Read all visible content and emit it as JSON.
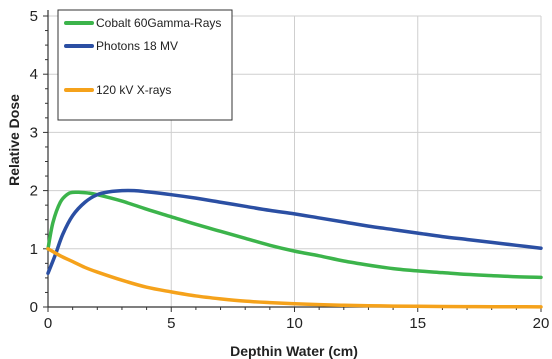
{
  "chart_data": {
    "type": "line",
    "title": "",
    "xlabel": "Depthin Water (cm)",
    "ylabel": "Relative Dose",
    "xlim": [
      0,
      20
    ],
    "ylim": [
      0,
      5
    ],
    "x_ticks": [
      0,
      5,
      10,
      15,
      20
    ],
    "y_ticks": [
      0,
      1,
      2,
      3,
      4,
      5
    ],
    "grid": true,
    "legend_position": "top-left",
    "series": [
      {
        "name": "Cobalt 60Gamma-Rays",
        "color": "#3cb44b",
        "x": [
          0,
          0.2,
          0.5,
          0.8,
          1.0,
          1.3,
          1.6,
          2.0,
          3,
          4,
          5,
          6,
          7,
          8,
          9,
          10,
          11,
          12,
          13,
          14,
          15,
          16,
          17,
          18,
          19,
          20
        ],
        "y": [
          1.0,
          1.45,
          1.8,
          1.94,
          1.97,
          1.97,
          1.96,
          1.93,
          1.82,
          1.68,
          1.55,
          1.42,
          1.3,
          1.18,
          1.06,
          0.96,
          0.88,
          0.79,
          0.72,
          0.66,
          0.62,
          0.59,
          0.56,
          0.54,
          0.52,
          0.51
        ]
      },
      {
        "name": "Photons 18 MV",
        "color": "#2b4fa3",
        "x": [
          0,
          0.3,
          0.6,
          1.0,
          1.5,
          2.0,
          2.5,
          3.0,
          3.5,
          4,
          5,
          6,
          7,
          8,
          9,
          10,
          11,
          12,
          13,
          14,
          15,
          16,
          17,
          18,
          19,
          20
        ],
        "y": [
          0.58,
          0.9,
          1.25,
          1.57,
          1.8,
          1.93,
          1.98,
          2.0,
          2.0,
          1.98,
          1.93,
          1.87,
          1.8,
          1.73,
          1.66,
          1.6,
          1.53,
          1.46,
          1.39,
          1.33,
          1.27,
          1.21,
          1.16,
          1.11,
          1.06,
          1.01
        ]
      },
      {
        "name": "120 kV X-rays",
        "color": "#f5a21b",
        "x": [
          0,
          0.5,
          1,
          1.5,
          2,
          3,
          4,
          5,
          6,
          7,
          8,
          9,
          10,
          11,
          12,
          13,
          14,
          15,
          16,
          17,
          18,
          19,
          20
        ],
        "y": [
          1.0,
          0.88,
          0.78,
          0.68,
          0.6,
          0.46,
          0.34,
          0.26,
          0.19,
          0.14,
          0.1,
          0.075,
          0.055,
          0.04,
          0.03,
          0.022,
          0.016,
          0.012,
          0.009,
          0.007,
          0.005,
          0.004,
          0.003
        ]
      }
    ]
  }
}
